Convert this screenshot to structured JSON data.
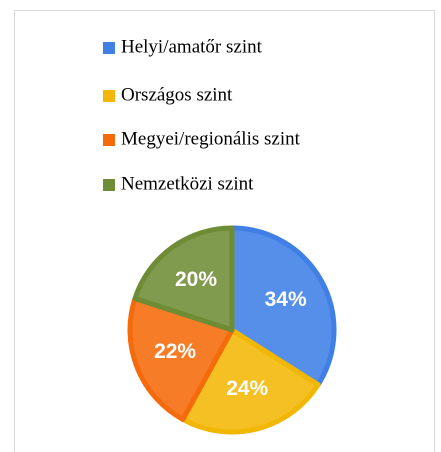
{
  "chart_data": {
    "type": "pie",
    "categories": [
      "Helyi/amatőr szint",
      "Országos szint",
      "Megyei/regionális szint",
      "Nemzetközi szint"
    ],
    "values": [
      34,
      24,
      22,
      20
    ],
    "value_labels": [
      "34%",
      "24%",
      "22%",
      "20%"
    ],
    "colors": [
      "#3f7fe6",
      "#f2b705",
      "#f56a0a",
      "#6e8c35"
    ],
    "legend": "top"
  }
}
